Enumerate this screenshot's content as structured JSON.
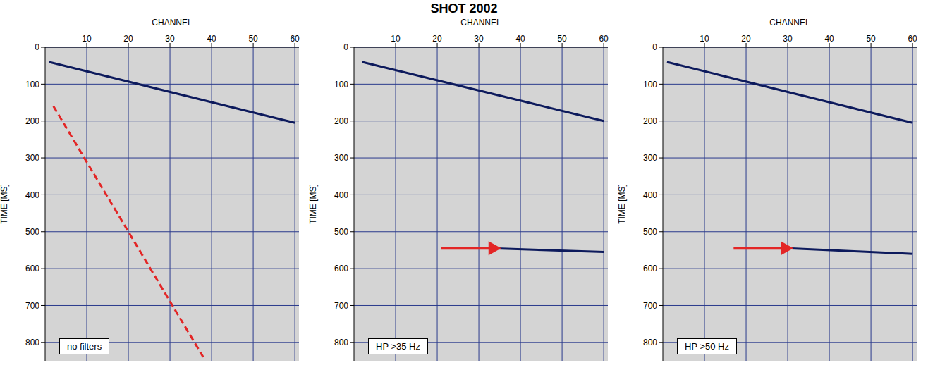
{
  "title": "SHOT 2002",
  "chart_data": [
    {
      "type": "line",
      "x_label": "CHANNEL",
      "y_label": "TIME [MS]",
      "xlim": [
        0,
        61
      ],
      "xticks": [
        10,
        20,
        30,
        40,
        50,
        60
      ],
      "ylim": [
        0,
        850
      ],
      "yticks": [
        0,
        100,
        200,
        300,
        400,
        500,
        600,
        700,
        800
      ],
      "grid": true,
      "annotations": [
        {
          "text": "no filters"
        }
      ],
      "series": [
        {
          "color": "#0d1a5c",
          "x": [
            1,
            60
          ],
          "values": [
            40,
            205
          ]
        },
        {
          "color": "#e32626",
          "line_style": "dashed",
          "x": [
            2,
            38
          ],
          "values": [
            160,
            840
          ]
        }
      ]
    },
    {
      "type": "line",
      "x_label": "CHANNEL",
      "y_label": "TIME [MS]",
      "xlim": [
        0,
        61
      ],
      "xticks": [
        10,
        20,
        30,
        40,
        50,
        60
      ],
      "ylim": [
        0,
        850
      ],
      "yticks": [
        0,
        100,
        200,
        300,
        400,
        500,
        600,
        700,
        800
      ],
      "grid": true,
      "annotations": [
        {
          "text": "HP >35 Hz"
        }
      ],
      "arrows": [
        {
          "x": [
            21,
            33
          ],
          "y": [
            545,
            545
          ],
          "color": "#e32626"
        }
      ],
      "series": [
        {
          "color": "#0d1a5c",
          "x": [
            2,
            60
          ],
          "values": [
            40,
            200
          ]
        },
        {
          "color": "#0d1a5c",
          "x": [
            33,
            60
          ],
          "values": [
            545,
            555
          ]
        }
      ]
    },
    {
      "type": "line",
      "x_label": "CHANNEL",
      "y_label": "TIME [MS]",
      "xlim": [
        0,
        61
      ],
      "xticks": [
        10,
        20,
        30,
        40,
        50,
        60
      ],
      "ylim": [
        0,
        850
      ],
      "yticks": [
        0,
        100,
        200,
        300,
        400,
        500,
        600,
        700,
        800
      ],
      "grid": true,
      "annotations": [
        {
          "text": "HP >50 Hz"
        }
      ],
      "arrows": [
        {
          "x": [
            17,
            29
          ],
          "y": [
            545,
            545
          ],
          "color": "#e32626"
        }
      ],
      "series": [
        {
          "color": "#0d1a5c",
          "x": [
            1,
            60
          ],
          "values": [
            40,
            205
          ]
        },
        {
          "color": "#0d1a5c",
          "x": [
            30,
            60
          ],
          "values": [
            545,
            560
          ]
        }
      ]
    }
  ]
}
